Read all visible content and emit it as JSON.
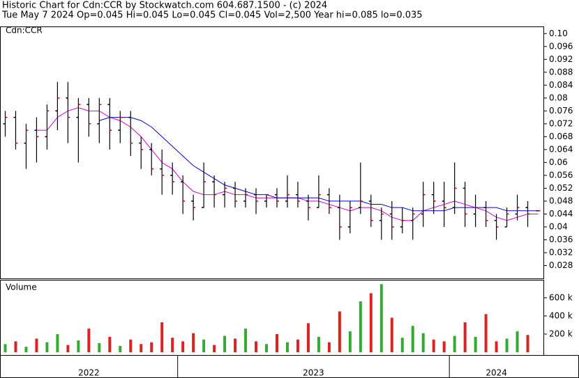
{
  "header": {
    "line1": "Historic Chart for Cdn:CCR by Stockwatch.com 604.687.1500 - (c) 2024",
    "line2": "Tue May  7 2024  Op=0.045  Hi=0.045  Lo=0.045  Cl=0.045  Vol=2,500  Year hi=0.085  lo=0.035"
  },
  "chart_data": [
    {
      "type": "ohlc",
      "label": "Cdn:CCR",
      "bar_color": "#000000",
      "close_color": "#cc0000",
      "open": [
        0.072,
        0.074,
        0.066,
        0.07,
        0.068,
        0.076,
        0.08,
        0.074,
        0.078,
        0.072,
        0.078,
        0.07,
        0.074,
        0.066,
        0.064,
        0.058,
        0.056,
        0.054,
        0.048,
        0.046,
        0.054,
        0.05,
        0.052,
        0.048,
        0.05,
        0.048,
        0.05,
        0.048,
        0.05,
        0.048,
        0.046,
        0.05,
        0.046,
        0.04,
        0.046,
        0.048,
        0.042,
        0.044,
        0.04,
        0.042,
        0.044,
        0.05,
        0.048,
        0.046,
        0.052,
        0.044,
        0.046,
        0.042,
        0.04,
        0.044,
        0.046,
        0.045
      ],
      "high": [
        0.076,
        0.076,
        0.072,
        0.074,
        0.078,
        0.085,
        0.085,
        0.08,
        0.08,
        0.08,
        0.08,
        0.076,
        0.076,
        0.068,
        0.066,
        0.064,
        0.06,
        0.056,
        0.05,
        0.06,
        0.056,
        0.054,
        0.054,
        0.052,
        0.052,
        0.05,
        0.052,
        0.056,
        0.054,
        0.05,
        0.056,
        0.052,
        0.05,
        0.048,
        0.06,
        0.05,
        0.046,
        0.048,
        0.046,
        0.046,
        0.054,
        0.054,
        0.054,
        0.06,
        0.054,
        0.05,
        0.048,
        0.044,
        0.046,
        0.05,
        0.048,
        0.045
      ],
      "low": [
        0.068,
        0.064,
        0.058,
        0.06,
        0.064,
        0.07,
        0.066,
        0.06,
        0.068,
        0.066,
        0.064,
        0.066,
        0.062,
        0.058,
        0.056,
        0.05,
        0.05,
        0.044,
        0.042,
        0.046,
        0.046,
        0.046,
        0.046,
        0.046,
        0.044,
        0.046,
        0.046,
        0.046,
        0.046,
        0.042,
        0.046,
        0.044,
        0.036,
        0.038,
        0.044,
        0.04,
        0.036,
        0.036,
        0.038,
        0.036,
        0.04,
        0.044,
        0.04,
        0.044,
        0.04,
        0.04,
        0.04,
        0.036,
        0.04,
        0.042,
        0.04,
        0.045
      ],
      "close": [
        0.074,
        0.066,
        0.07,
        0.068,
        0.076,
        0.08,
        0.074,
        0.078,
        0.072,
        0.078,
        0.07,
        0.074,
        0.066,
        0.064,
        0.058,
        0.056,
        0.054,
        0.048,
        0.046,
        0.054,
        0.05,
        0.052,
        0.048,
        0.05,
        0.048,
        0.05,
        0.048,
        0.05,
        0.048,
        0.046,
        0.05,
        0.046,
        0.04,
        0.046,
        0.048,
        0.042,
        0.044,
        0.04,
        0.042,
        0.044,
        0.05,
        0.048,
        0.046,
        0.052,
        0.044,
        0.046,
        0.042,
        0.04,
        0.044,
        0.046,
        0.044,
        0.045
      ],
      "series": [
        {
          "color": "#cc00cc",
          "values": [
            null,
            null,
            null,
            0.07,
            0.07,
            0.074,
            0.076,
            0.077,
            0.076,
            0.076,
            0.074,
            0.073,
            0.071,
            0.068,
            0.064,
            0.06,
            0.058,
            0.054,
            0.051,
            0.05,
            0.05,
            0.051,
            0.05,
            0.05,
            0.049,
            0.049,
            0.049,
            0.049,
            0.049,
            0.048,
            0.048,
            0.047,
            0.046,
            0.045,
            0.046,
            0.046,
            0.045,
            0.043,
            0.042,
            0.042,
            0.045,
            0.046,
            0.047,
            0.048,
            0.047,
            0.046,
            0.045,
            0.043,
            0.042,
            0.043,
            0.044,
            0.044
          ]
        },
        {
          "color": "#0000cc",
          "values": [
            null,
            null,
            null,
            null,
            null,
            null,
            null,
            null,
            null,
            0.073,
            0.074,
            0.074,
            0.074,
            0.073,
            0.071,
            0.068,
            0.065,
            0.062,
            0.059,
            0.057,
            0.055,
            0.053,
            0.052,
            0.051,
            0.05,
            0.05,
            0.049,
            0.049,
            0.049,
            0.049,
            0.049,
            0.048,
            0.048,
            0.048,
            0.048,
            0.047,
            0.047,
            0.046,
            0.046,
            0.045,
            0.045,
            0.045,
            0.045,
            0.046,
            0.046,
            0.046,
            0.046,
            0.046,
            0.045,
            0.045,
            0.045,
            0.045
          ]
        }
      ],
      "ylim": [
        0.024,
        0.102
      ],
      "yticks": [
        {
          "value": 0.1,
          "label": "0.10"
        },
        0.096,
        0.092,
        0.088,
        0.084,
        0.08,
        0.076,
        0.072,
        0.068,
        0.064,
        0.06,
        0.056,
        0.052,
        0.048,
        0.044,
        0.04,
        0.036,
        0.032,
        0.028
      ]
    },
    {
      "type": "bar",
      "label": "Volume",
      "up_color": "#33aa33",
      "down_color": "#dd2222",
      "flat_color": "#aaaaaa",
      "categories": [
        "2022",
        null,
        null,
        null,
        null,
        null,
        null,
        null,
        null,
        null,
        null,
        null,
        null,
        null,
        null,
        null,
        null,
        "2023",
        null,
        null,
        null,
        null,
        null,
        null,
        null,
        null,
        null,
        null,
        null,
        null,
        null,
        null,
        null,
        null,
        null,
        null,
        null,
        null,
        null,
        null,
        null,
        null,
        null,
        "2024",
        null,
        null,
        null,
        null,
        null,
        null,
        null,
        null
      ],
      "values": [
        90000,
        120000,
        60000,
        150000,
        110000,
        200000,
        80000,
        130000,
        260000,
        100000,
        170000,
        70000,
        140000,
        90000,
        110000,
        330000,
        160000,
        120000,
        210000,
        140000,
        80000,
        180000,
        150000,
        260000,
        120000,
        90000,
        200000,
        110000,
        140000,
        320000,
        170000,
        110000,
        450000,
        230000,
        560000,
        650000,
        750000,
        380000,
        160000,
        290000,
        210000,
        140000,
        120000,
        180000,
        330000,
        170000,
        420000,
        120000,
        150000,
        230000,
        190000,
        2500
      ],
      "ylim": [
        0,
        790000
      ],
      "yticks": [
        {
          "value": 200000,
          "label": "200 k"
        },
        {
          "value": 400000,
          "label": "400 k"
        },
        {
          "value": 600000,
          "label": "600 k"
        }
      ]
    }
  ]
}
